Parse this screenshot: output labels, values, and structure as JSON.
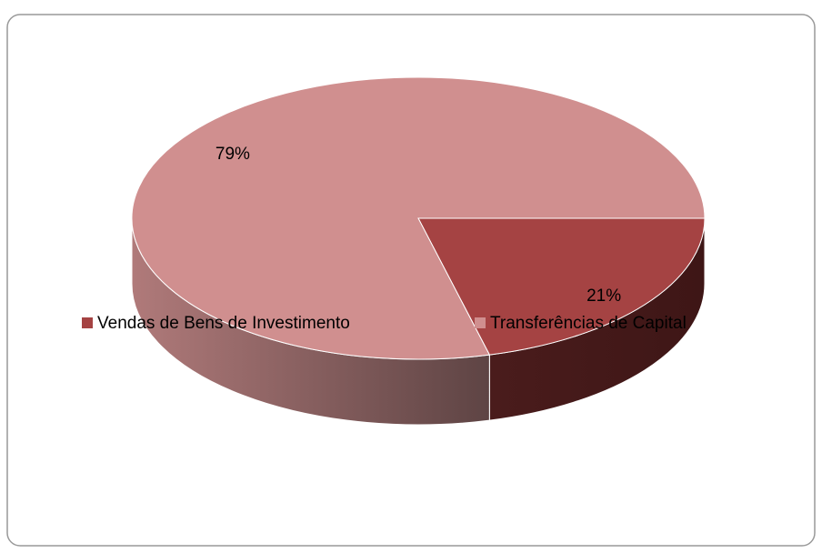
{
  "chart_data": {
    "type": "pie",
    "categories": [
      "Vendas de Bens de Investimento",
      "Transferências de Capital"
    ],
    "values": [
      21,
      79
    ],
    "value_labels": [
      "21%",
      "79%"
    ],
    "colors": [
      "#a54343",
      "#d08f8f"
    ],
    "legend": "bottom"
  }
}
